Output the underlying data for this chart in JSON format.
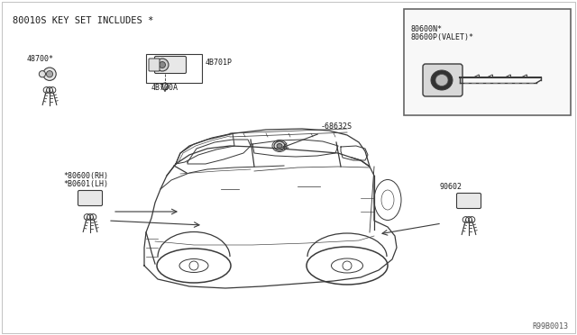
{
  "bg_color": "#f5f5f5",
  "white_bg": "#ffffff",
  "line_color": "#3a3a3a",
  "text_color": "#1a1a1a",
  "header_text": "80010S KEY SET INCLUDES *",
  "label_48700": "48700*",
  "label_4B701P": "4B701P",
  "label_4B700A": "4B700A",
  "label_68632S": "-68632S",
  "label_door_rh": "*80600(RH)",
  "label_door_lh": "*B0601(LH)",
  "label_90602": "90602",
  "label_valet1": "80600N*",
  "label_valet2": "80600P(VALET)*",
  "diagram_ref": "R99B0013",
  "figsize": [
    6.4,
    3.72
  ],
  "dpi": 100
}
